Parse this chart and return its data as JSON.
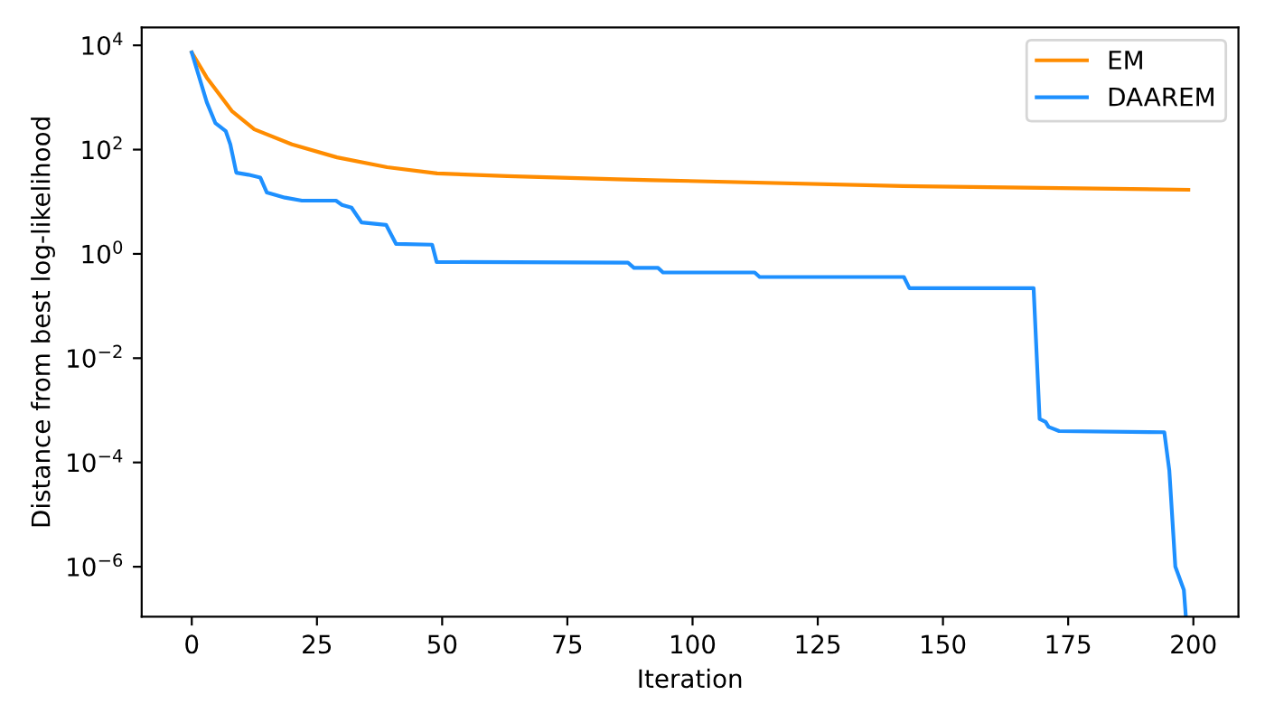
{
  "chart_data": {
    "type": "line",
    "xlabel": "Iteration",
    "ylabel": "Distance from best log-likelihood",
    "log": "y",
    "legend": "top right",
    "grid": false,
    "xlim": [
      -10,
      209
    ],
    "xticks": [
      0,
      25,
      50,
      75,
      100,
      125,
      150,
      175,
      200
    ],
    "ylim": [
      1.1e-07,
      22000
    ],
    "yticks": [
      {
        "value": 1e-06,
        "label": "10$^{−6}$"
      },
      {
        "value": 0.0001,
        "label": "10$^{−4}$"
      },
      {
        "value": 0.01,
        "label": "10$^{−2}$"
      },
      {
        "value": 1,
        "label": "10$^{0}$"
      },
      {
        "value": 100,
        "label": "10$^{2}$"
      },
      {
        "value": 10000,
        "label": "10$^{4}$"
      }
    ],
    "series": [
      {
        "name": "EM",
        "color": "#ff8c00",
        "x": [
          0,
          3,
          8,
          12.5,
          20,
          29,
          39,
          49,
          63,
          85,
          92,
          142,
          199
        ],
        "values": [
          7300,
          2400,
          550,
          245,
          126,
          71,
          46,
          35,
          31,
          27,
          26,
          20,
          17
        ]
      },
      {
        "name": "DAAREM",
        "color": "#1e90ff",
        "x": [
          0,
          3,
          4.7,
          6.8,
          7.7,
          8.9,
          11.3,
          13.7,
          15,
          18.6,
          22,
          28.8,
          30,
          31.9,
          33.9,
          38.8,
          40.8,
          48,
          48.9,
          87.1,
          88.3,
          93.1,
          94.1,
          112.4,
          113.4,
          142.2,
          143.3,
          168.1,
          169.3,
          170.5,
          171.1,
          173.2,
          194.2,
          195.2,
          196.4,
          198.1,
          198.5
        ],
        "values": [
          7300,
          810,
          325,
          225,
          126,
          36,
          33,
          29,
          15,
          12,
          10.5,
          10.5,
          8.7,
          7.7,
          4,
          3.6,
          1.55,
          1.5,
          0.7,
          0.68,
          0.54,
          0.54,
          0.44,
          0.44,
          0.36,
          0.36,
          0.22,
          0.22,
          0.00068,
          0.0006,
          0.00048,
          0.0004,
          0.00038,
          7e-05,
          1e-06,
          3.6e-07,
          1.1e-07
        ]
      }
    ]
  }
}
